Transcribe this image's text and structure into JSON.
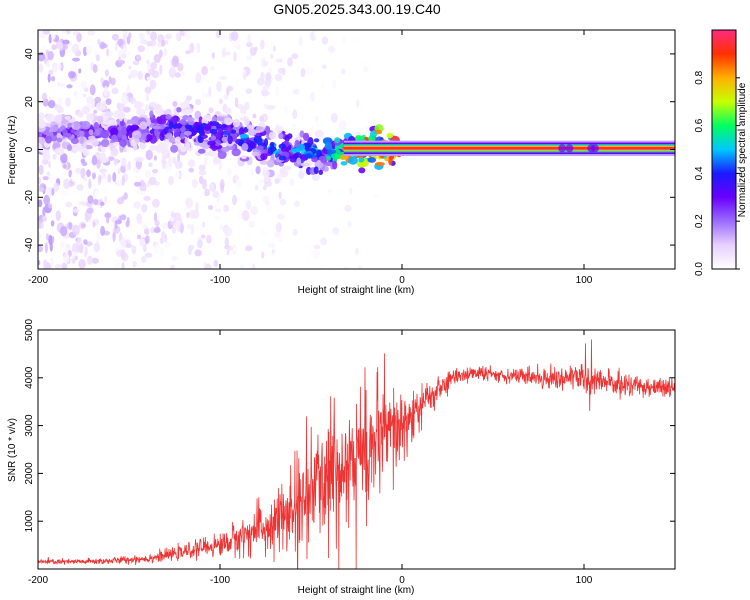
{
  "title": "GN05.2025.343.00.19.C40",
  "chart_data": [
    {
      "type": "heatmap",
      "name": "spectrogram",
      "xlabel": "Height of straight line (km)",
      "ylabel": "Frequency (Hz)",
      "xlim": [
        -200,
        150
      ],
      "ylim": [
        -50,
        50
      ],
      "xticks": [
        -200,
        -100,
        0,
        100
      ],
      "yticks": [
        -40,
        -20,
        0,
        20,
        40
      ],
      "colorbar": {
        "label": "Normalized spectral amplitude",
        "range": [
          0,
          1
        ],
        "ticks": [
          "0.0",
          "0.2",
          "0.4",
          "0.6",
          "0.8"
        ],
        "tick_values": [
          0,
          0.2,
          0.4,
          0.6,
          0.8
        ],
        "colors": [
          "#ffffff",
          "#e8d0ff",
          "#9a6cff",
          "#6a00ff",
          "#1a1aff",
          "#00c8ff",
          "#00ff60",
          "#c8ff00",
          "#ffb000",
          "#ff3000",
          "#ff2a80"
        ]
      },
      "ridge": [
        {
          "x": -200,
          "f": 7,
          "a": 0.25
        },
        {
          "x": -180,
          "f": 7,
          "a": 0.3
        },
        {
          "x": -160,
          "f": 7,
          "a": 0.3
        },
        {
          "x": -140,
          "f": 8,
          "a": 0.35
        },
        {
          "x": -125,
          "f": 9,
          "a": 0.38
        },
        {
          "x": -110,
          "f": 7,
          "a": 0.4
        },
        {
          "x": -95,
          "f": 7,
          "a": 0.42
        },
        {
          "x": -85,
          "f": 4,
          "a": 0.45
        },
        {
          "x": -75,
          "f": 1,
          "a": 0.45
        },
        {
          "x": -60,
          "f": -1,
          "a": 0.45
        },
        {
          "x": -45,
          "f": -2,
          "a": 0.5
        },
        {
          "x": -35,
          "f": -1,
          "a": 0.6
        },
        {
          "x": -30,
          "f": 0,
          "a": 0.85
        },
        {
          "x": -15,
          "f": 1,
          "a": 0.9
        },
        {
          "x": 0,
          "f": 0.5,
          "a": 0.95
        },
        {
          "x": 150,
          "f": 0.5,
          "a": 0.95
        }
      ]
    },
    {
      "type": "line",
      "name": "snr",
      "xlabel": "Height of straight line (km)",
      "ylabel": "SNR (10 * v/v)",
      "xlim": [
        -200,
        150
      ],
      "ylim": [
        0,
        5000
      ],
      "xticks": [
        -200,
        -100,
        0,
        100
      ],
      "yticks": [
        1000,
        2000,
        3000,
        4000,
        5000
      ],
      "color": "#ee3333",
      "series": [
        {
          "name": "SNR",
          "x": [
            -200,
            -180,
            -160,
            -140,
            -130,
            -120,
            -110,
            -100,
            -90,
            -80,
            -70,
            -60,
            -50,
            -40,
            -30,
            -20,
            -10,
            0,
            10,
            20,
            30,
            40,
            60,
            80,
            100,
            120,
            150
          ],
          "values": [
            150,
            150,
            170,
            220,
            280,
            350,
            450,
            500,
            650,
            800,
            1000,
            1200,
            1600,
            2000,
            2300,
            2500,
            2700,
            2900,
            3400,
            3750,
            4050,
            4100,
            4050,
            4000,
            4000,
            3850,
            3800
          ],
          "noise": [
            50,
            50,
            60,
            80,
            100,
            120,
            160,
            200,
            300,
            400,
            500,
            700,
            900,
            1100,
            1200,
            1100,
            900,
            800,
            400,
            250,
            150,
            120,
            130,
            180,
            250,
            200,
            180
          ]
        }
      ]
    }
  ]
}
